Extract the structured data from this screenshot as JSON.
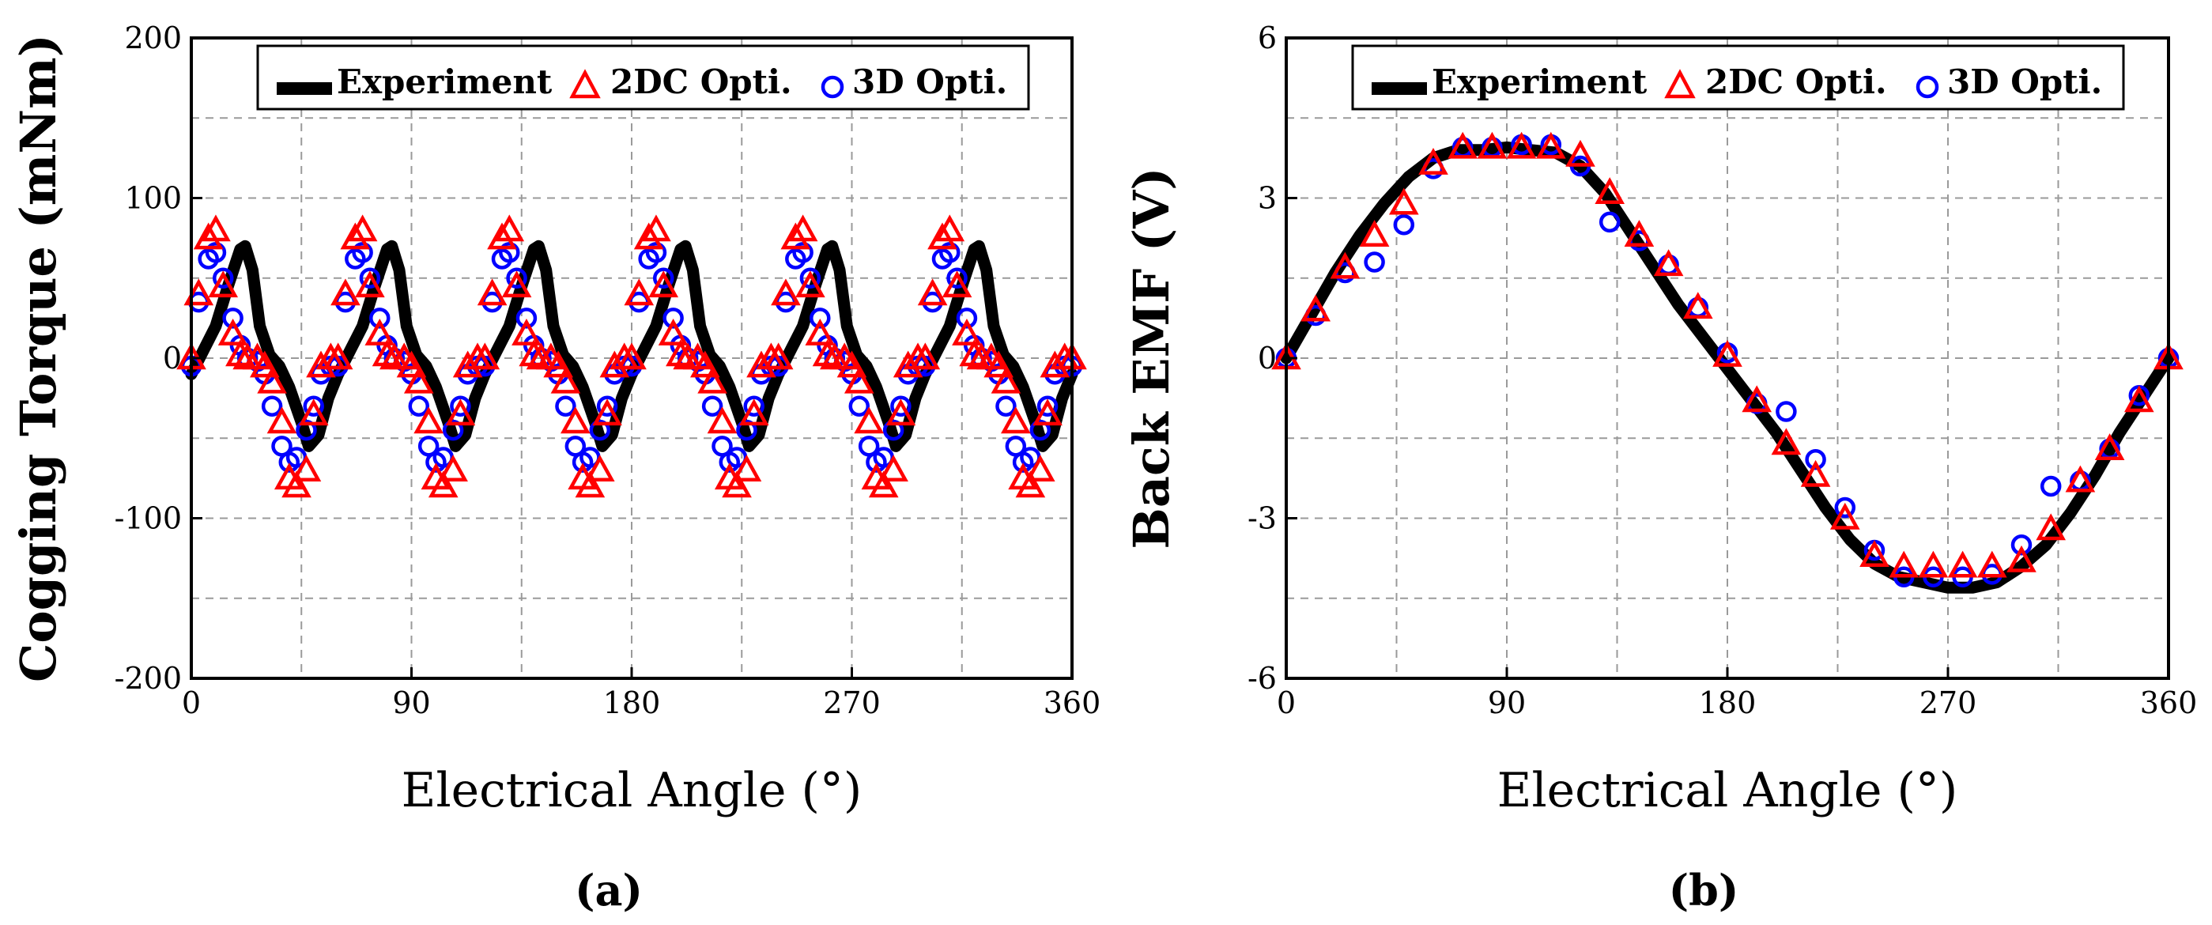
{
  "colors": {
    "experiment": "#000000",
    "twoDC": "#ff0000",
    "threeD": "#0000ff",
    "grid": "#9a9a9a"
  },
  "chart_data": [
    {
      "panel": "(a)",
      "type": "line",
      "title": "",
      "xlabel": "Electrical Angle (°)",
      "ylabel": "Cogging Torque (mNm)",
      "xlim": [
        0,
        360
      ],
      "ylim": [
        -200,
        200
      ],
      "xticks": [
        0,
        90,
        180,
        270,
        360
      ],
      "yticks": [
        -200,
        -100,
        0,
        100,
        200
      ],
      "grid": true,
      "legend_position": "top",
      "periodic": true,
      "period": 60,
      "series": [
        {
          "name": "Experiment",
          "marker": "line",
          "x": [
            0,
            5,
            10,
            15,
            20,
            22,
            25,
            28,
            32,
            36,
            40,
            45,
            48,
            52,
            56,
            60
          ],
          "y": [
            -10,
            5,
            20,
            45,
            68,
            70,
            55,
            20,
            2,
            -5,
            -18,
            -40,
            -55,
            -48,
            -25,
            -10
          ]
        },
        {
          "name": "2DC Opti.",
          "marker": "triangle",
          "x": [
            0,
            3,
            7,
            10,
            13,
            17,
            20,
            23,
            27,
            30,
            33,
            37,
            40,
            43,
            47,
            50,
            53,
            57
          ],
          "y": [
            0,
            40,
            75,
            80,
            45,
            15,
            2,
            0,
            0,
            -5,
            -15,
            -40,
            -75,
            -80,
            -70,
            -35,
            -5,
            0
          ]
        },
        {
          "name": "3D Opti.",
          "marker": "circle",
          "x": [
            0,
            3,
            7,
            10,
            13,
            17,
            20,
            23,
            27,
            30,
            33,
            37,
            40,
            43,
            47,
            50,
            53,
            57
          ],
          "y": [
            -5,
            35,
            62,
            66,
            50,
            25,
            8,
            0,
            -2,
            -10,
            -30,
            -55,
            -65,
            -62,
            -45,
            -30,
            -10,
            -5
          ]
        }
      ]
    },
    {
      "panel": "(b)",
      "type": "line",
      "title": "",
      "xlabel": "Electrical Angle (°)",
      "ylabel": "Back EMF (V)",
      "xlim": [
        0,
        360
      ],
      "ylim": [
        -6,
        6
      ],
      "xticks": [
        0,
        90,
        180,
        270,
        360
      ],
      "yticks": [
        -6,
        -3,
        0,
        3,
        6
      ],
      "grid": true,
      "legend_position": "top",
      "series": [
        {
          "name": "Experiment",
          "marker": "line",
          "x": [
            0,
            10,
            20,
            30,
            40,
            50,
            60,
            70,
            80,
            90,
            100,
            110,
            120,
            130,
            140,
            150,
            160,
            170,
            180,
            190,
            200,
            210,
            220,
            230,
            240,
            250,
            260,
            270,
            280,
            290,
            300,
            310,
            320,
            330,
            340,
            350,
            360
          ],
          "y": [
            0,
            0.8,
            1.6,
            2.3,
            2.9,
            3.4,
            3.75,
            3.9,
            3.9,
            3.95,
            3.9,
            3.85,
            3.6,
            3.1,
            2.4,
            1.7,
            1.0,
            0.4,
            -0.2,
            -0.8,
            -1.4,
            -2.1,
            -2.8,
            -3.4,
            -3.85,
            -4.1,
            -4.2,
            -4.3,
            -4.3,
            -4.2,
            -3.9,
            -3.5,
            -2.9,
            -2.2,
            -1.4,
            -0.7,
            0
          ]
        },
        {
          "name": "2DC Opti.",
          "marker": "triangle",
          "x": [
            0,
            12,
            24,
            36,
            48,
            60,
            72,
            84,
            96,
            108,
            120,
            132,
            144,
            156,
            168,
            180,
            192,
            204,
            216,
            228,
            240,
            252,
            264,
            276,
            288,
            300,
            312,
            324,
            336,
            348,
            360
          ],
          "y": [
            0,
            0.9,
            1.7,
            2.3,
            2.9,
            3.65,
            3.95,
            3.95,
            3.95,
            3.95,
            3.8,
            3.1,
            2.3,
            1.75,
            0.95,
            0.05,
            -0.8,
            -1.6,
            -2.2,
            -3.0,
            -3.7,
            -3.9,
            -3.9,
            -3.9,
            -3.9,
            -3.8,
            -3.2,
            -2.3,
            -1.7,
            -0.8,
            0
          ]
        },
        {
          "name": "3D Opti.",
          "marker": "circle",
          "x": [
            0,
            12,
            24,
            36,
            48,
            60,
            72,
            84,
            96,
            108,
            120,
            132,
            144,
            156,
            168,
            180,
            192,
            204,
            216,
            228,
            240,
            252,
            264,
            276,
            288,
            300,
            312,
            324,
            336,
            348,
            360
          ],
          "y": [
            0,
            0.8,
            1.6,
            1.8,
            2.5,
            3.55,
            3.95,
            3.95,
            4.0,
            4.0,
            3.6,
            2.55,
            2.2,
            1.75,
            0.95,
            0.1,
            -0.85,
            -1.0,
            -1.9,
            -2.8,
            -3.6,
            -4.1,
            -4.1,
            -4.1,
            -4.05,
            -3.5,
            -2.4,
            -2.3,
            -1.7,
            -0.7,
            0
          ]
        }
      ]
    }
  ]
}
